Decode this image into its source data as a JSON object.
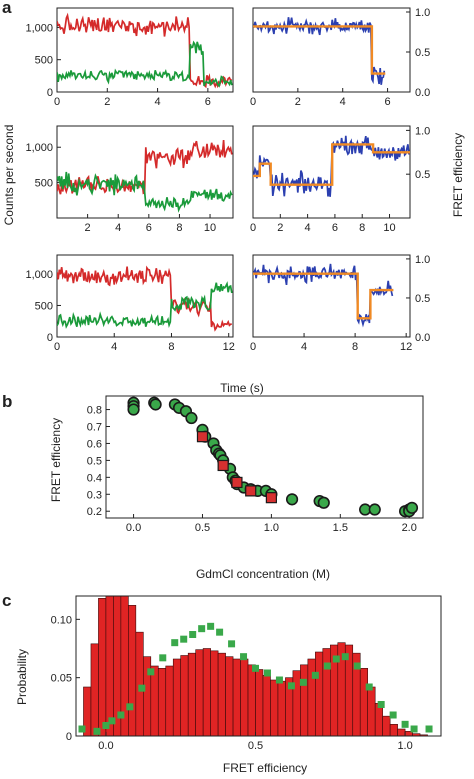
{
  "panel_letters": [
    "a",
    "b",
    "c"
  ],
  "labels": {
    "a_ylabel_left": "Counts per second",
    "a_ylabel_right": "FRET efficiency",
    "a_xlabel": "Time (s)",
    "b_ylabel": "FRET efficiency",
    "b_xlabel": "GdmCl concentration (M)",
    "c_ylabel": "Probability",
    "c_xlabel": "FRET efficiency"
  },
  "colors": {
    "acceptor": "#d42a2a",
    "donor": "#1a9a3a",
    "fret_trace": "#2b3fb0",
    "fret_fit": "#f08a24",
    "scatter_green": "#3aa84a",
    "scatter_red": "#d63030",
    "histogram": "#e02424"
  },
  "chart_data": [
    {
      "id": "a1-counts",
      "type": "line",
      "xlabel": "",
      "ylabel": "",
      "xlim": [
        0,
        7
      ],
      "ylim": [
        0,
        1300
      ],
      "xticks": [
        0,
        2,
        4,
        6
      ],
      "yticks": [
        0,
        500,
        1000
      ],
      "yticklabels": [
        "0",
        "500",
        "1,000"
      ],
      "series": [
        {
          "color": "acceptor",
          "segments": [
            [
              0,
              5.3,
              1020,
              110
            ],
            [
              5.3,
              7.0,
              180,
              60
            ]
          ]
        },
        {
          "color": "donor",
          "segments": [
            [
              0,
              5.3,
              250,
              70
            ],
            [
              5.3,
              5.85,
              650,
              90
            ],
            [
              5.85,
              7.0,
              160,
              60
            ]
          ]
        }
      ]
    },
    {
      "id": "a1-fret",
      "type": "line",
      "xlim": [
        0,
        7
      ],
      "ylim": [
        0,
        1.05
      ],
      "xticks": [
        0,
        2,
        4,
        6
      ],
      "yticks": [
        0,
        0.5,
        1
      ],
      "yticklabels": [
        "0.0",
        "0.5",
        "1.0"
      ],
      "series": [
        {
          "color": "fret_trace",
          "segments": [
            [
              0,
              5.3,
              0.82,
              0.07
            ],
            [
              5.3,
              5.9,
              0.2,
              0.09
            ]
          ]
        },
        {
          "color": "fret_fit",
          "steps": [
            [
              0,
              5.3,
              0.82
            ],
            [
              5.3,
              5.9,
              0.23
            ]
          ]
        }
      ]
    },
    {
      "id": "a2-counts",
      "type": "line",
      "xlim": [
        0,
        11.5
      ],
      "ylim": [
        0,
        1300
      ],
      "xticks": [
        2,
        4,
        6,
        8,
        10
      ],
      "yticks": [
        500,
        1000
      ],
      "yticklabels": [
        "500",
        "1,000"
      ],
      "series": [
        {
          "color": "acceptor",
          "segments": [
            [
              0,
              5.8,
              450,
              100
            ],
            [
              5.8,
              8.8,
              870,
              110
            ],
            [
              8.8,
              11.5,
              960,
              110
            ]
          ]
        },
        {
          "color": "donor",
          "segments": [
            [
              0,
              5.8,
              480,
              110
            ],
            [
              5.8,
              8.8,
              220,
              70
            ],
            [
              8.8,
              11.5,
              330,
              70
            ]
          ]
        }
      ]
    },
    {
      "id": "a2-fret",
      "type": "line",
      "xlim": [
        0,
        11.5
      ],
      "ylim": [
        0,
        1.05
      ],
      "xticks": [
        0,
        2,
        4,
        6,
        8,
        10
      ],
      "yticks": [
        0.5,
        1
      ],
      "yticklabels": [
        "0.5",
        "1.0"
      ],
      "series": [
        {
          "color": "fret_trace",
          "segments": [
            [
              0,
              0.5,
              0.5,
              0.07
            ],
            [
              0.5,
              1.3,
              0.62,
              0.06
            ],
            [
              1.3,
              5.8,
              0.38,
              0.09
            ],
            [
              5.8,
              8.8,
              0.83,
              0.07
            ],
            [
              8.8,
              11.5,
              0.75,
              0.07
            ]
          ]
        },
        {
          "color": "fret_fit",
          "steps": [
            [
              0,
              0.5,
              0.48
            ],
            [
              0.5,
              1.3,
              0.62
            ],
            [
              1.3,
              5.8,
              0.38
            ],
            [
              5.8,
              8.8,
              0.84
            ],
            [
              8.8,
              11.5,
              0.75
            ]
          ]
        }
      ]
    },
    {
      "id": "a3-counts",
      "type": "line",
      "xlim": [
        0,
        12.3
      ],
      "ylim": [
        0,
        1300
      ],
      "xticks": [
        0,
        4,
        8,
        12
      ],
      "yticks": [
        0,
        500,
        1000
      ],
      "yticklabels": [
        "0",
        "500",
        "1,000"
      ],
      "series": [
        {
          "color": "acceptor",
          "segments": [
            [
              0,
              8.0,
              960,
              110
            ],
            [
              8.0,
              10.8,
              500,
              110
            ],
            [
              10.8,
              12.3,
              220,
              60
            ]
          ]
        },
        {
          "color": "donor",
          "segments": [
            [
              0,
              8.0,
              260,
              70
            ],
            [
              8.0,
              10.8,
              520,
              120
            ],
            [
              10.8,
              12.3,
              780,
              80
            ]
          ]
        }
      ]
    },
    {
      "id": "a3-fret",
      "type": "line",
      "xlim": [
        0,
        12.3
      ],
      "ylim": [
        0,
        1.05
      ],
      "xticks": [
        0,
        4,
        8,
        12
      ],
      "yticks": [
        0,
        0.5,
        1
      ],
      "yticklabels": [
        "0.0",
        "0.5",
        "1.0"
      ],
      "series": [
        {
          "color": "fret_trace",
          "segments": [
            [
              0,
              8.2,
              0.81,
              0.08
            ],
            [
              8.2,
              9.2,
              0.22,
              0.07
            ],
            [
              9.2,
              11.0,
              0.58,
              0.08
            ]
          ]
        },
        {
          "color": "fret_fit",
          "steps": [
            [
              0,
              8.2,
              0.81
            ],
            [
              8.2,
              9.2,
              0.24
            ],
            [
              9.2,
              11.0,
              0.6
            ]
          ]
        }
      ]
    },
    {
      "id": "b",
      "type": "scatter",
      "xlim": [
        -0.2,
        2.1
      ],
      "ylim": [
        0.16,
        0.88
      ],
      "xticks": [
        0.0,
        0.5,
        1.0,
        1.5,
        2.0
      ],
      "xticklabels": [
        "0.0",
        "0.5",
        "1.0",
        "1.5",
        "2.0"
      ],
      "yticks": [
        0.2,
        0.3,
        0.4,
        0.5,
        0.6,
        0.7,
        0.8
      ],
      "yticklabels": [
        "0.2",
        "0.3",
        "0.4",
        "0.5",
        "0.6",
        "0.7",
        "0.8"
      ],
      "series": [
        {
          "color": "scatter_green",
          "marker": "circle",
          "points": [
            [
              0.0,
              0.84
            ],
            [
              0.0,
              0.82
            ],
            [
              0.0,
              0.8
            ],
            [
              0.15,
              0.84
            ],
            [
              0.16,
              0.83
            ],
            [
              0.3,
              0.83
            ],
            [
              0.33,
              0.81
            ],
            [
              0.38,
              0.79
            ],
            [
              0.42,
              0.75
            ],
            [
              0.5,
              0.68
            ],
            [
              0.52,
              0.64
            ],
            [
              0.58,
              0.6
            ],
            [
              0.6,
              0.56
            ],
            [
              0.62,
              0.54
            ],
            [
              0.63,
              0.53
            ],
            [
              0.65,
              0.5
            ],
            [
              0.7,
              0.45
            ],
            [
              0.72,
              0.4
            ],
            [
              0.74,
              0.38
            ],
            [
              0.75,
              0.36
            ],
            [
              0.8,
              0.34
            ],
            [
              0.85,
              0.33
            ],
            [
              0.9,
              0.32
            ],
            [
              0.96,
              0.32
            ],
            [
              1.0,
              0.3
            ],
            [
              1.15,
              0.27
            ],
            [
              1.35,
              0.26
            ],
            [
              1.38,
              0.25
            ],
            [
              1.68,
              0.21
            ],
            [
              1.75,
              0.21
            ],
            [
              1.97,
              0.2
            ],
            [
              2.0,
              0.21
            ],
            [
              2.0,
              0.2
            ],
            [
              2.02,
              0.22
            ]
          ]
        },
        {
          "color": "scatter_red",
          "marker": "square",
          "points": [
            [
              0.5,
              0.64
            ],
            [
              0.65,
              0.47
            ],
            [
              0.75,
              0.37
            ],
            [
              0.85,
              0.32
            ],
            [
              1.0,
              0.28
            ]
          ]
        }
      ]
    },
    {
      "id": "c",
      "type": "bar",
      "xlim": [
        -0.1,
        1.12
      ],
      "ylim": [
        0,
        0.12
      ],
      "xticks": [
        0.0,
        0.5,
        1.0
      ],
      "xticklabels": [
        "0.0",
        "0.5",
        "1.0"
      ],
      "yticks": [
        0,
        0.05,
        0.1
      ],
      "yticklabels": [
        "0",
        "0.05",
        "0.10"
      ],
      "bin_start": -0.075,
      "bin_width": 0.025,
      "values": [
        0.042,
        0.079,
        0.118,
        0.12,
        0.12,
        0.12,
        0.112,
        0.089,
        0.068,
        0.06,
        0.058,
        0.06,
        0.066,
        0.069,
        0.071,
        0.074,
        0.075,
        0.073,
        0.071,
        0.068,
        0.066,
        0.066,
        0.061,
        0.057,
        0.052,
        0.048,
        0.047,
        0.05,
        0.056,
        0.061,
        0.066,
        0.072,
        0.075,
        0.078,
        0.08,
        0.078,
        0.071,
        0.058,
        0.042,
        0.028,
        0.017,
        0.01,
        0.006,
        0.004,
        0.002,
        0.001
      ],
      "overlay": {
        "color": "scatter_green",
        "marker": "square",
        "points": [
          [
            -0.08,
            0.006
          ],
          [
            -0.03,
            0.004
          ],
          [
            0.0,
            0.009
          ],
          [
            0.02,
            0.013
          ],
          [
            0.05,
            0.018
          ],
          [
            0.08,
            0.025
          ],
          [
            0.12,
            0.041
          ],
          [
            0.15,
            0.055
          ],
          [
            0.19,
            0.067
          ],
          [
            0.23,
            0.08
          ],
          [
            0.26,
            0.083
          ],
          [
            0.29,
            0.087
          ],
          [
            0.32,
            0.092
          ],
          [
            0.35,
            0.094
          ],
          [
            0.38,
            0.089
          ],
          [
            0.42,
            0.079
          ],
          [
            0.46,
            0.068
          ],
          [
            0.5,
            0.058
          ],
          [
            0.54,
            0.054
          ],
          [
            0.58,
            0.048
          ],
          [
            0.62,
            0.043
          ],
          [
            0.66,
            0.046
          ],
          [
            0.7,
            0.052
          ],
          [
            0.74,
            0.06
          ],
          [
            0.77,
            0.066
          ],
          [
            0.8,
            0.068
          ],
          [
            0.84,
            0.06
          ],
          [
            0.88,
            0.042
          ],
          [
            0.92,
            0.027
          ],
          [
            0.96,
            0.018
          ],
          [
            1.0,
            0.01
          ],
          [
            1.03,
            0.006
          ],
          [
            1.08,
            0.006
          ]
        ]
      }
    }
  ]
}
